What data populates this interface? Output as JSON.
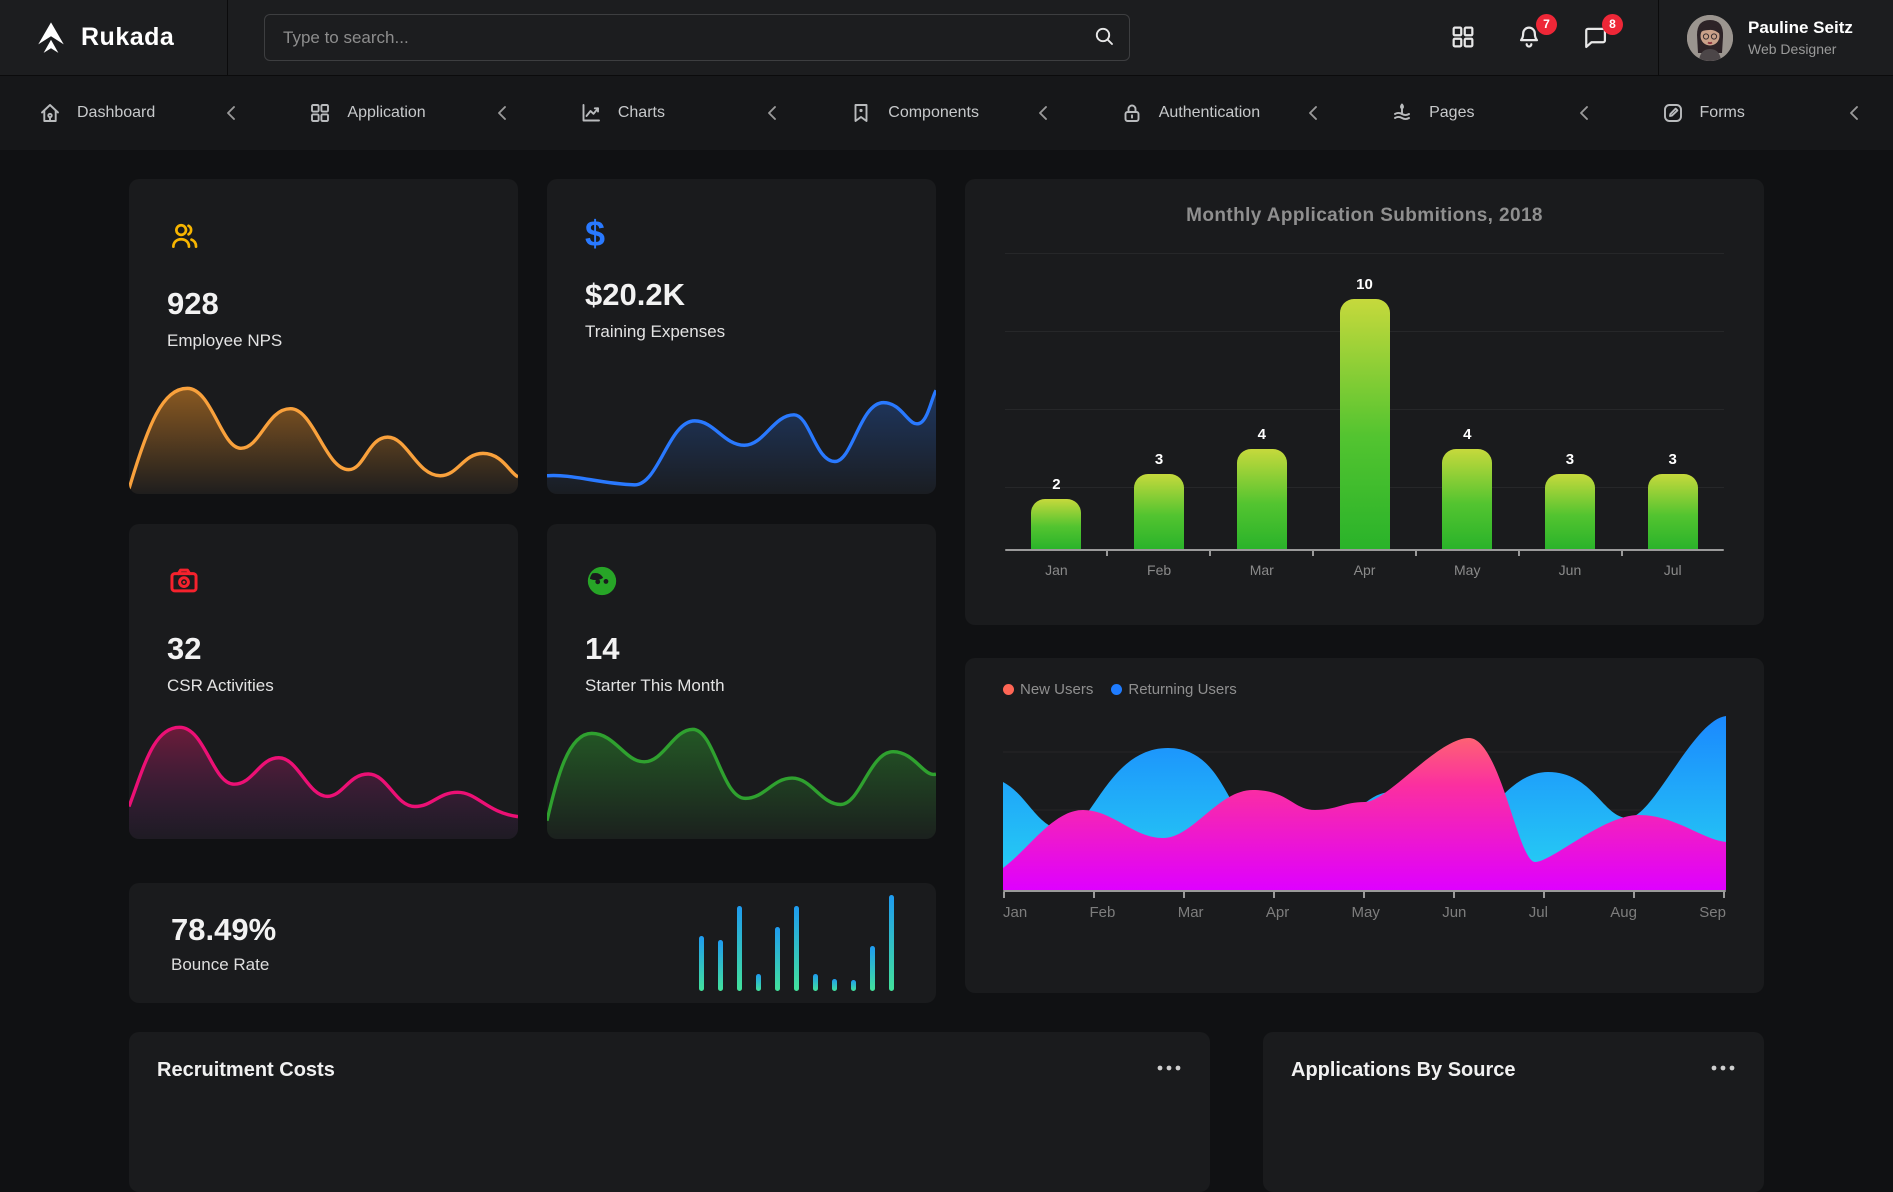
{
  "brand": {
    "name": "Rukada"
  },
  "topbar": {
    "search_placeholder": "Type to search...",
    "notification_badge": "7",
    "message_badge": "8",
    "user_name": "Pauline Seitz",
    "user_role": "Web Designer"
  },
  "nav": {
    "items": [
      {
        "label": "Dashboard",
        "icon": "home-icon"
      },
      {
        "label": "Application",
        "icon": "apps-icon"
      },
      {
        "label": "Charts",
        "icon": "chart-line-icon"
      },
      {
        "label": "Components",
        "icon": "bookmark-icon"
      },
      {
        "label": "Authentication",
        "icon": "lock-icon"
      },
      {
        "label": "Pages",
        "icon": "pages-icon"
      },
      {
        "label": "Forms",
        "icon": "pencil-square-icon"
      }
    ]
  },
  "stat_cards": [
    {
      "icon": "users-icon",
      "value": "928",
      "label": "Employee NPS",
      "accent": "#f7b500",
      "spark_color": "#f9a13c"
    },
    {
      "icon": "dollar-icon",
      "value": "$20.2K",
      "label": "Training Expenses",
      "accent": "#2979ff",
      "spark_color": "#2979ff"
    },
    {
      "icon": "camera-icon",
      "value": "32",
      "label": "CSR Activities",
      "accent": "#f5222d",
      "spark_color": "#ec1075"
    },
    {
      "icon": "face-icon",
      "value": "14",
      "label": "Starter This Month",
      "accent": "#27a527",
      "spark_color": "#2fa12f"
    }
  ],
  "bar_chart": {
    "title": "Monthly Application Submitions, 2018",
    "chart_data": {
      "type": "bar",
      "categories": [
        "Jan",
        "Feb",
        "Mar",
        "Apr",
        "May",
        "Jun",
        "Jul"
      ],
      "values": [
        2,
        3,
        4,
        10,
        4,
        3,
        3
      ],
      "ylim": [
        0,
        10
      ],
      "grid": true,
      "value_labels": true,
      "bar_gradient": [
        "#c6d93c",
        "#2ab32a"
      ]
    }
  },
  "area_chart": {
    "chart_data": {
      "type": "area",
      "x": [
        "Jan",
        "Feb",
        "Mar",
        "Apr",
        "May",
        "Jun",
        "Jul",
        "Aug",
        "Sep"
      ],
      "series": [
        {
          "name": "New Users",
          "color": "#ff6655",
          "gradient": [
            "#ff7f5a",
            "#fb2fa0",
            "#df00ff"
          ],
          "values_norm_0_10": [
            1.2,
            4.4,
            2.9,
            5.6,
            4.9,
            8.4,
            1.5,
            4.2,
            2.7
          ]
        },
        {
          "name": "Returning Users",
          "color": "#1f7cff",
          "gradient": [
            "#1a86ff",
            "#27d4f2"
          ],
          "values_norm_0_10": [
            6.0,
            3.3,
            7.9,
            3.3,
            5.4,
            2.8,
            6.6,
            4.0,
            9.7
          ]
        }
      ],
      "legend_position": "top-left",
      "grid": false
    }
  },
  "bounce": {
    "value": "78.49%",
    "label": "Bounce Rate",
    "chart_data": {
      "type": "bar",
      "relative_heights_pct": [
        57,
        53,
        89,
        18,
        67,
        89,
        18,
        12,
        11,
        47,
        100
      ],
      "bar_gradient": [
        "#1e9bf0",
        "#43e29b"
      ]
    }
  },
  "bottom_cards": [
    {
      "title": "Recruitment Costs"
    },
    {
      "title": "Applications By Source"
    }
  ],
  "colors": {
    "page_bg": "#101113",
    "card_bg": "#1a1b1d",
    "topbar_bg": "#1c1d1f",
    "nav_bg": "#161719",
    "badge_red": "#ee2737",
    "accent_blue": "#2979ff",
    "accent_yellow": "#f7b500",
    "accent_red": "#f5222d",
    "accent_green": "#27a527"
  }
}
